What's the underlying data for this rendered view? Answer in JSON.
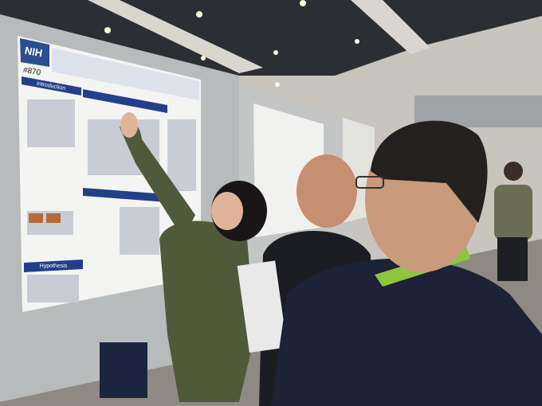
{
  "poster": {
    "logo": "NIH",
    "number": "#870",
    "sections": [
      "Introduction",
      "Hypothesis"
    ]
  }
}
